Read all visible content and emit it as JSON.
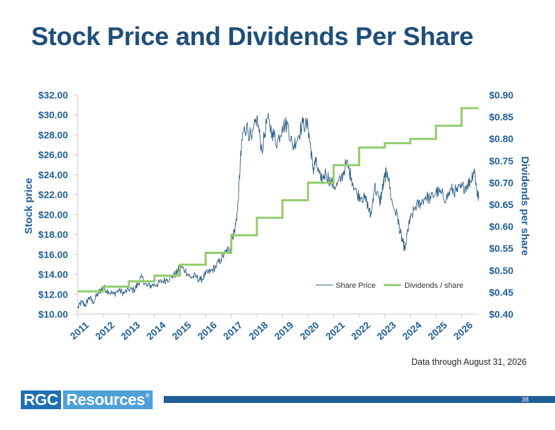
{
  "slide": {
    "title": "Stock Price and Dividends Per Share",
    "note": "Data through August 31, 2026",
    "logo_part1": "RGC",
    "logo_part2": "Resources",
    "logo_mark": "®",
    "page_number": "38"
  },
  "chart_data": {
    "type": "line",
    "left_axis": {
      "label": "Stock price",
      "min": 10,
      "max": 32,
      "step": 2,
      "tick_labels": [
        "$10.00",
        "$12.00",
        "$14.00",
        "$16.00",
        "$18.00",
        "$20.00",
        "$22.00",
        "$24.00",
        "$26.00",
        "$28.00",
        "$30.00",
        "$32.00"
      ]
    },
    "right_axis": {
      "label": "Dividends per share",
      "min": 0.4,
      "max": 0.9,
      "step": 0.05,
      "tick_labels": [
        "$0.40",
        "$0.45",
        "$0.50",
        "$0.55",
        "$0.60",
        "$0.65",
        "$0.70",
        "$0.75",
        "$0.80",
        "$0.85",
        "$0.90"
      ]
    },
    "x_axis": {
      "min": 2011.0,
      "max": 2026.67,
      "tick_labels": [
        "2011",
        "2012",
        "2013",
        "2014",
        "2015",
        "2016",
        "2017",
        "2018",
        "2019",
        "2020",
        "2021",
        "2022",
        "2023",
        "2024",
        "2025",
        "2026"
      ]
    },
    "grid": false,
    "legend_position": "inside-bottom-right",
    "colors": {
      "share_price": "#2b5d82",
      "dividends": "#92cc6b",
      "axis_text": "#1f5f96"
    },
    "series": [
      {
        "name": "Share Price",
        "axis": "left",
        "x": [
          2011.0,
          2011.15,
          2011.3,
          2011.45,
          2011.6,
          2011.8,
          2011.9,
          2012.0,
          2012.2,
          2012.4,
          2012.6,
          2012.8,
          2013.0,
          2013.2,
          2013.35,
          2013.5,
          2013.7,
          2013.9,
          2014.1,
          2014.3,
          2014.5,
          2014.7,
          2014.9,
          2015.0,
          2015.2,
          2015.4,
          2015.6,
          2015.8,
          2016.0,
          2016.2,
          2016.4,
          2016.6,
          2016.8,
          2016.95,
          2017.05,
          2017.15,
          2017.25,
          2017.35,
          2017.45,
          2017.6,
          2017.8,
          2018.0,
          2018.2,
          2018.4,
          2018.6,
          2018.8,
          2019.0,
          2019.2,
          2019.4,
          2019.6,
          2019.8,
          2020.0,
          2020.1,
          2020.2,
          2020.3,
          2020.5,
          2020.7,
          2020.9,
          2021.1,
          2021.3,
          2021.5,
          2021.7,
          2021.9,
          2022.1,
          2022.3,
          2022.45,
          2022.6,
          2022.8,
          2022.9,
          2023.0,
          2023.1,
          2023.3,
          2023.5,
          2023.6,
          2023.7,
          2023.8,
          2023.9,
          2024.0,
          2024.2,
          2024.4,
          2024.6,
          2024.8,
          2025.0,
          2025.2,
          2025.4,
          2025.6,
          2025.8,
          2026.0,
          2026.2,
          2026.35,
          2026.5,
          2026.6,
          2026.67
        ],
        "values": [
          10.6,
          11.2,
          10.9,
          11.7,
          11.2,
          12.1,
          12.4,
          12.7,
          12.3,
          12.0,
          12.4,
          12.1,
          12.5,
          12.4,
          13.0,
          13.7,
          12.8,
          12.9,
          13.0,
          13.3,
          13.5,
          13.8,
          14.2,
          14.8,
          14.4,
          13.7,
          13.8,
          13.4,
          14.0,
          14.3,
          14.8,
          15.5,
          16.3,
          16.6,
          17.8,
          18.6,
          20.5,
          25.0,
          28.2,
          28.8,
          27.5,
          29.8,
          26.4,
          29.6,
          28.3,
          27.2,
          28.9,
          29.1,
          26.8,
          27.8,
          29.2,
          28.8,
          26.8,
          24.5,
          25.3,
          23.4,
          24.2,
          23.2,
          22.8,
          23.6,
          25.2,
          23.7,
          22.1,
          21.8,
          21.3,
          19.8,
          22.9,
          21.2,
          22.4,
          23.8,
          24.3,
          21.0,
          19.8,
          18.3,
          17.2,
          16.5,
          18.5,
          19.5,
          20.8,
          21.2,
          21.8,
          21.6,
          22.3,
          22.1,
          21.6,
          22.5,
          22.3,
          22.7,
          22.9,
          23.4,
          24.6,
          22.3,
          21.6
        ]
      },
      {
        "name": "Dividends / share",
        "axis": "right",
        "x": [
          2011.0,
          2012.0,
          2013.0,
          2014.0,
          2015.0,
          2016.0,
          2017.0,
          2018.0,
          2019.0,
          2020.0,
          2021.0,
          2022.0,
          2023.0,
          2024.0,
          2025.0,
          2026.0,
          2026.67
        ],
        "values": [
          0.452,
          0.463,
          0.475,
          0.488,
          0.513,
          0.54,
          0.58,
          0.62,
          0.66,
          0.7,
          0.74,
          0.78,
          0.79,
          0.8,
          0.83,
          0.87,
          0.87
        ]
      }
    ]
  }
}
